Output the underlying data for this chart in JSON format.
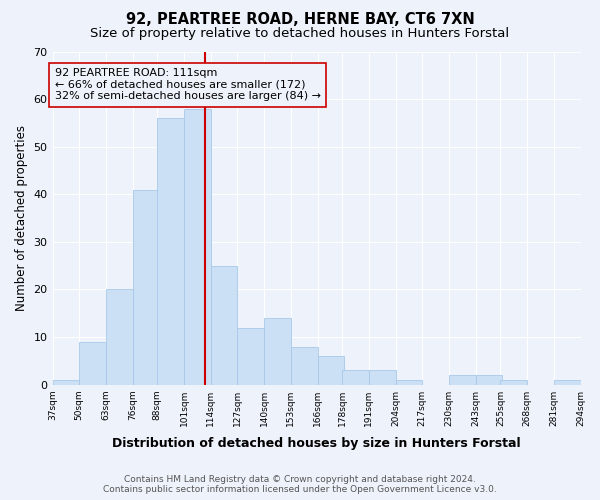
{
  "title": "92, PEARTREE ROAD, HERNE BAY, CT6 7XN",
  "subtitle": "Size of property relative to detached houses in Hunters Forstal",
  "xlabel": "Distribution of detached houses by size in Hunters Forstal",
  "ylabel": "Number of detached properties",
  "footer_line1": "Contains HM Land Registry data © Crown copyright and database right 2024.",
  "footer_line2": "Contains public sector information licensed under the Open Government Licence v3.0.",
  "annotation_line1": "92 PEARTREE ROAD: 111sqm",
  "annotation_line2": "← 66% of detached houses are smaller (172)",
  "annotation_line3": "32% of semi-detached houses are larger (84) →",
  "property_line_x": 111,
  "bar_color": "#cce0f5",
  "bar_edge_color": "#a8c8e8",
  "line_color": "#cc0000",
  "background_color": "#eef2fb",
  "bins": [
    37,
    50,
    63,
    76,
    88,
    101,
    114,
    127,
    140,
    153,
    166,
    178,
    191,
    204,
    217,
    230,
    243,
    255,
    268,
    281,
    294
  ],
  "counts": [
    1,
    9,
    20,
    41,
    56,
    58,
    25,
    12,
    14,
    8,
    6,
    3,
    3,
    1,
    0,
    2,
    2,
    1,
    0,
    1
  ],
  "ylim": [
    0,
    70
  ],
  "yticks": [
    0,
    10,
    20,
    30,
    40,
    50,
    60,
    70
  ],
  "tick_labels": [
    "37sqm",
    "50sqm",
    "63sqm",
    "76sqm",
    "88sqm",
    "101sqm",
    "114sqm",
    "127sqm",
    "140sqm",
    "153sqm",
    "166sqm",
    "178sqm",
    "191sqm",
    "204sqm",
    "217sqm",
    "230sqm",
    "243sqm",
    "255sqm",
    "268sqm",
    "281sqm",
    "294sqm"
  ],
  "title_fontsize": 10.5,
  "subtitle_fontsize": 9.5,
  "annotation_fontsize": 8,
  "footer_fontsize": 6.5
}
